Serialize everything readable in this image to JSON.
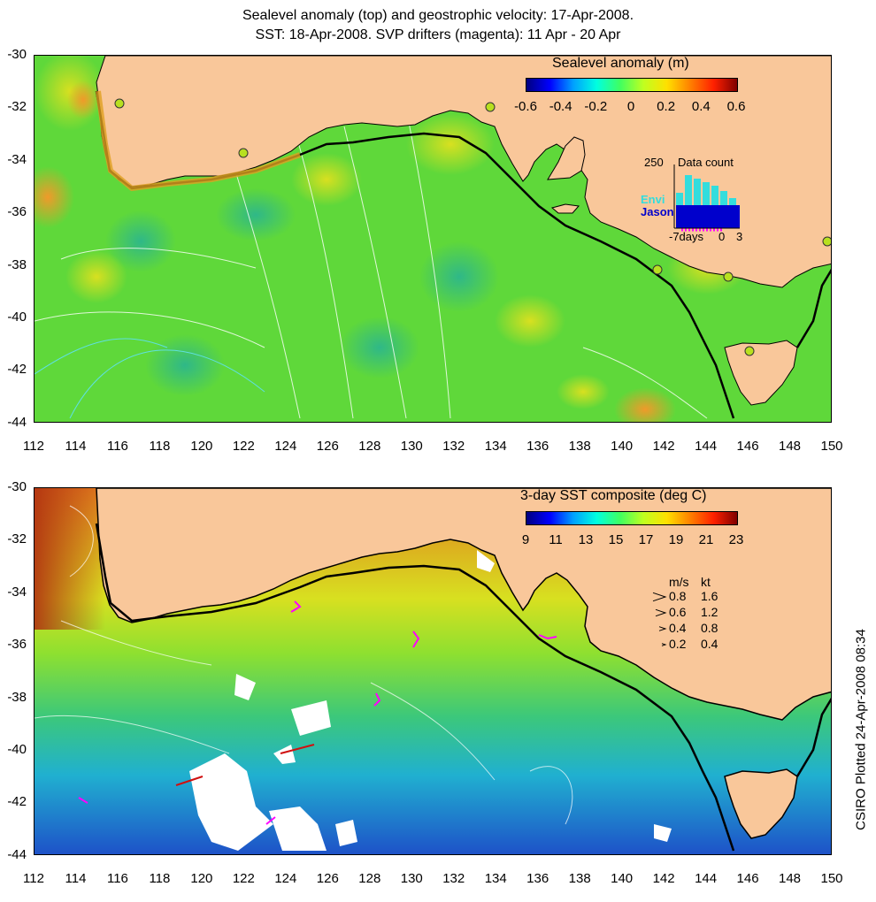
{
  "title": {
    "line1": "Sealevel anomaly (top) and geostrophic velocity: 17-Apr-2008.",
    "line2": "SST: 18-Apr-2008. SVP drifters (magenta): 11 Apr - 20 Apr"
  },
  "axes": {
    "lat_labels": [
      "-30",
      "-32",
      "-34",
      "-36",
      "-38",
      "-40",
      "-42",
      "-44"
    ],
    "lon_labels": [
      "112",
      "114",
      "116",
      "118",
      "120",
      "122",
      "124",
      "126",
      "128",
      "130",
      "132",
      "134",
      "136",
      "138",
      "140",
      "142",
      "144",
      "146",
      "148",
      "150"
    ]
  },
  "top_panel": {
    "colorbar_title": "Sealevel anomaly (m)",
    "colorbar_ticks": [
      "-0.6",
      "-0.4",
      "-0.2",
      "0",
      "0.2",
      "0.4",
      "0.6"
    ],
    "inset": {
      "count_label": "250",
      "title": "Data count",
      "series": [
        {
          "name": "Envi",
          "color": "#33dddd"
        },
        {
          "name": "Jason",
          "color": "#0000cc"
        }
      ],
      "x_labels": [
        "-7days",
        "0",
        "3"
      ]
    }
  },
  "bottom_panel": {
    "colorbar_title": "3-day SST composite (deg C)",
    "colorbar_ticks": [
      "9",
      "11",
      "13",
      "15",
      "17",
      "19",
      "21",
      "23"
    ],
    "velocity_legend": {
      "header_ms": "m/s",
      "header_kt": "kt",
      "rows": [
        {
          "ms": "0.8",
          "kt": "1.6"
        },
        {
          "ms": "0.6",
          "kt": "1.2"
        },
        {
          "ms": "0.4",
          "kt": "0.8"
        },
        {
          "ms": "0.2",
          "kt": "0.4"
        }
      ]
    }
  },
  "credit": "CSIRO Plotted 24-Apr-2008 08:34",
  "colors": {
    "land": "#f9c79a",
    "sla_ocean": "#5fd83a",
    "sst_warm": "#e07a1e",
    "sst_mid": "#3cc87a",
    "sst_cold": "#1e50c8",
    "drifter": "#ff00ff"
  }
}
